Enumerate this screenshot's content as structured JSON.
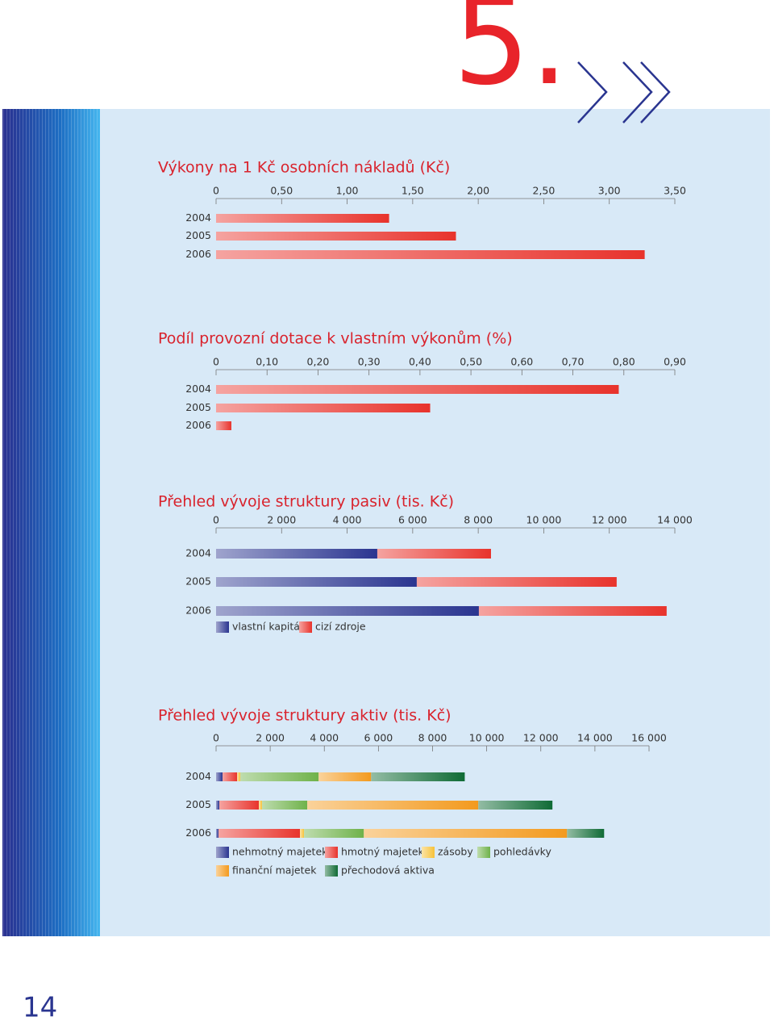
{
  "chapter_number": "5.",
  "page_number": "14",
  "chart_data": [
    {
      "type": "bar",
      "title": "Výkony na 1 Kč osobních nákladů (Kč)",
      "categories": [
        "2004",
        "2005",
        "2006"
      ],
      "values": [
        1.32,
        1.83,
        3.27
      ],
      "color": "#e8332c",
      "xlim": [
        0,
        3.5
      ],
      "xticks": [
        0,
        {
          "value": 0.5,
          "label": "0,50"
        },
        {
          "value": 1,
          "label": "1,00"
        },
        {
          "value": 1.5,
          "label": "1,50"
        },
        {
          "value": 2,
          "label": "2,00"
        },
        {
          "value": 2.5,
          "label": "2,50"
        },
        {
          "value": 3,
          "label": "3,00"
        },
        {
          "value": 3.5,
          "label": "3,50"
        }
      ]
    },
    {
      "type": "bar",
      "title": "Podíl provozní dotace k vlastním výkonům (%)",
      "categories": [
        "2004",
        "2005",
        "2006"
      ],
      "values": [
        0.79,
        0.42,
        0.03
      ],
      "color": "#e8332c",
      "xlim": [
        0,
        0.9
      ],
      "xticks": [
        0,
        {
          "value": 0.1,
          "label": "0,10"
        },
        {
          "value": 0.2,
          "label": "0,20"
        },
        {
          "value": 0.3,
          "label": "0,30"
        },
        {
          "value": 0.4,
          "label": "0,40"
        },
        {
          "value": 0.5,
          "label": "0,50"
        },
        {
          "value": 0.6,
          "label": "0,60"
        },
        {
          "value": 0.7,
          "label": "0,70"
        },
        {
          "value": 0.8,
          "label": "0,80"
        },
        {
          "value": 0.9,
          "label": "0,90"
        }
      ]
    },
    {
      "type": "stacked-bar",
      "title": "Přehled vývoje struktury pasiv (tis. Kč)",
      "categories": [
        "2004",
        "2005",
        "2006"
      ],
      "series": [
        {
          "name": "vlastní kapitál",
          "color": "#2a3590",
          "values": [
            4920,
            6125,
            8020
          ]
        },
        {
          "name": "cizí zdroje",
          "color": "#e8332c",
          "values": [
            3470,
            6100,
            5730
          ]
        }
      ],
      "xlim": [
        0,
        14000
      ],
      "xticks": [
        0,
        {
          "value": 2000,
          "label": "2 000"
        },
        {
          "value": 4000,
          "label": "4 000"
        },
        {
          "value": 6000,
          "label": "6 000"
        },
        {
          "value": 8000,
          "label": "8 000"
        },
        {
          "value": 10000,
          "label": "10 000"
        },
        {
          "value": 12000,
          "label": "12 000"
        },
        {
          "value": 14000,
          "label": "14 000"
        }
      ]
    },
    {
      "type": "stacked-bar",
      "title": "Přehled vývoje struktury aktiv (tis. Kč)",
      "categories": [
        "2004",
        "2005",
        "2006"
      ],
      "series": [
        {
          "name": "nehmotný majetek",
          "color": "#2a3590",
          "values": [
            240,
            120,
            90
          ]
        },
        {
          "name": "hmotný majetek",
          "color": "#e8332c",
          "values": [
            540,
            1460,
            3010
          ]
        },
        {
          "name": "zásoby",
          "color": "#f7c23a",
          "values": [
            120,
            120,
            150
          ]
        },
        {
          "name": "pohledávky",
          "color": "#6fb24a",
          "values": [
            2890,
            1670,
            2210
          ]
        },
        {
          "name": "finanční majetek",
          "color": "#f39a1e",
          "values": [
            1940,
            6320,
            7510
          ]
        },
        {
          "name": "přechodová aktiva",
          "color": "#0f6b35",
          "values": [
            3460,
            2740,
            1370
          ]
        }
      ],
      "xlim": [
        0,
        16000
      ],
      "xticks": [
        0,
        {
          "value": 2000,
          "label": "2 000"
        },
        {
          "value": 4000,
          "label": "4 000"
        },
        {
          "value": 6000,
          "label": "6 000"
        },
        {
          "value": 8000,
          "label": "8 000"
        },
        {
          "value": 10000,
          "label": "10 000"
        },
        {
          "value": 12000,
          "label": "12 000"
        },
        {
          "value": 14000,
          "label": "14 000"
        },
        {
          "value": 16000,
          "label": "16 000"
        }
      ]
    }
  ]
}
